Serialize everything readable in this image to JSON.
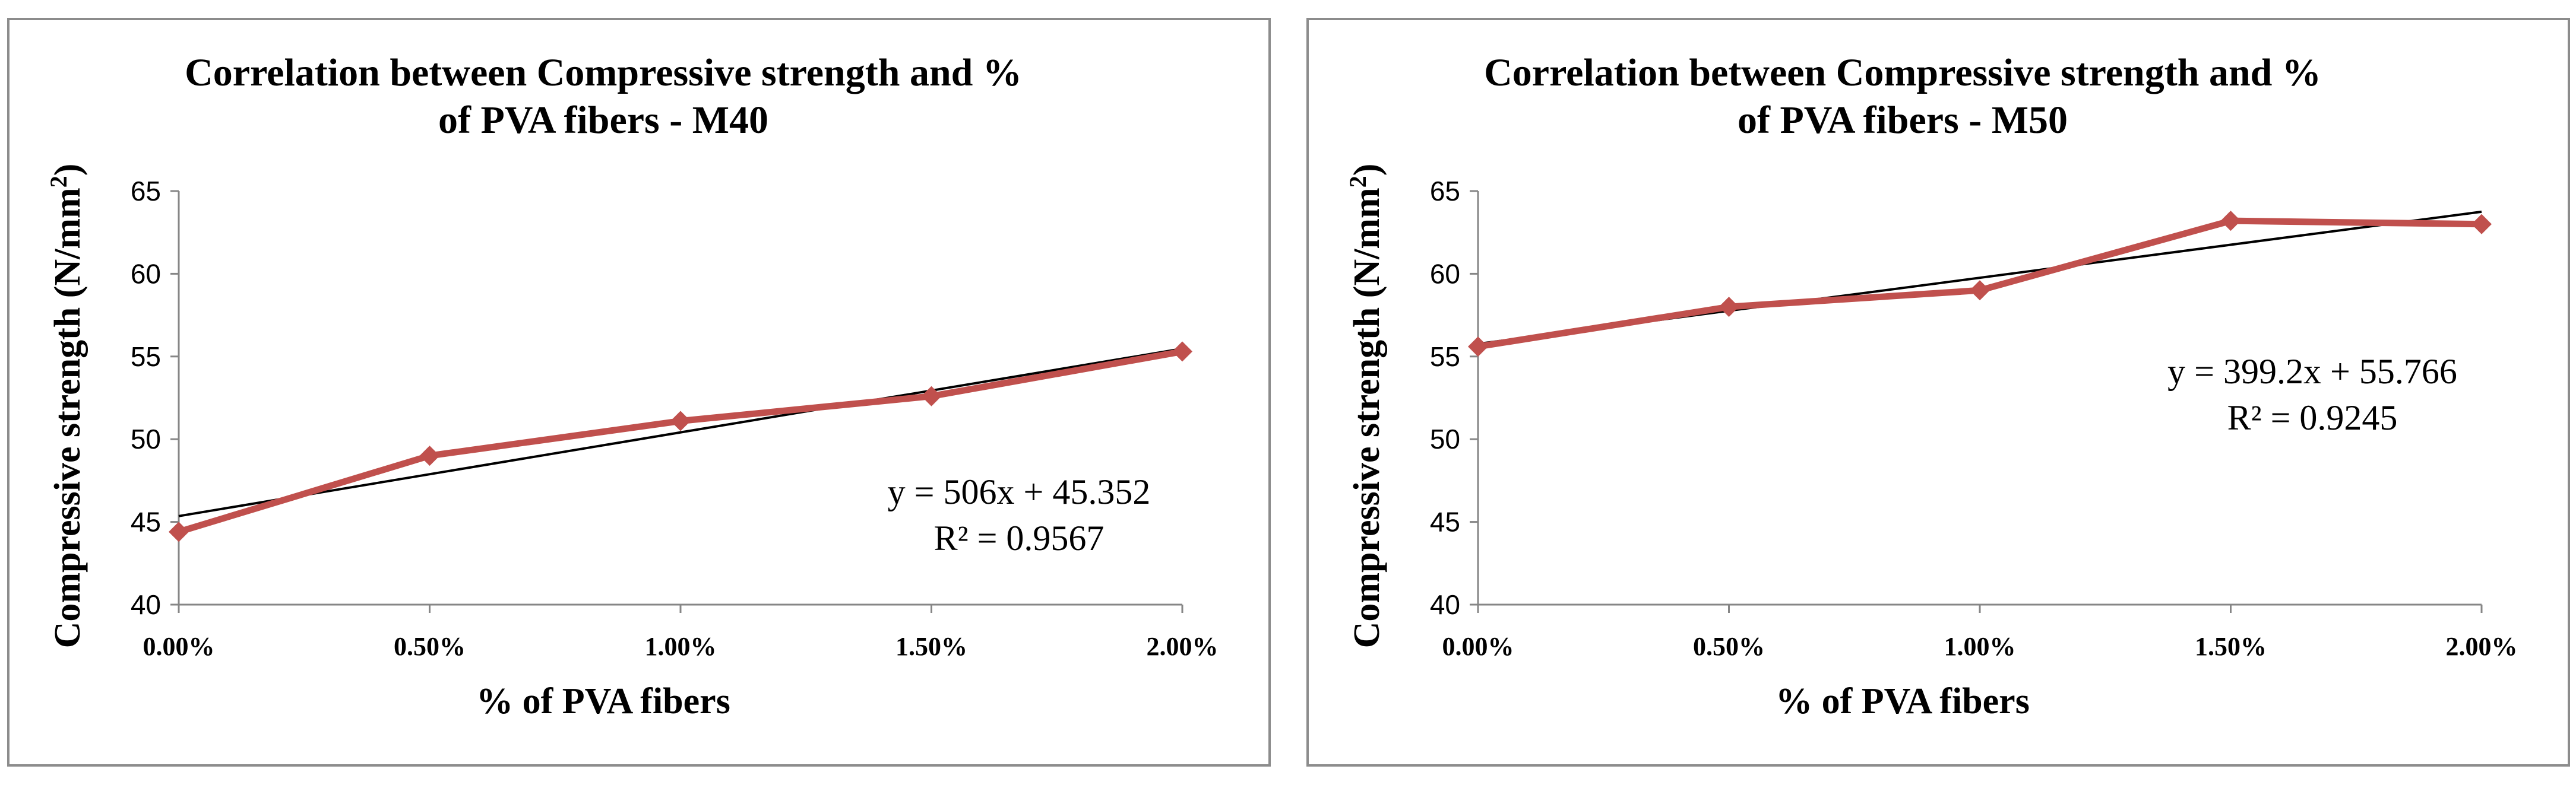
{
  "chart_data": [
    {
      "type": "line",
      "title_lines": [
        "Correlation between Compressive strength and %",
        "of PVA fibers - M40"
      ],
      "xlabel": "% of PVA fibers",
      "ylabel": "Compressive strength (N/mm",
      "ylabel_sup": "2",
      "ylabel_end": ")",
      "categories": [
        "0.00%",
        "0.50%",
        "1.00%",
        "1.50%",
        "2.00%"
      ],
      "x": [
        0,
        0.005,
        0.01,
        0.015,
        0.02
      ],
      "xlim": [
        0,
        0.02
      ],
      "ylim": [
        40,
        65
      ],
      "yticks": [
        "40",
        "45",
        "50",
        "55",
        "60",
        "65"
      ],
      "series": [
        {
          "name": "Compressive strength",
          "values": [
            44.4,
            49.0,
            51.1,
            52.6,
            55.3
          ],
          "color": "#c0504d"
        }
      ],
      "trendline": {
        "slope": 506,
        "intercept": 45.352,
        "color": "#000000",
        "equation": "y = 506x + 45.352",
        "r2": "R² = 0.9567"
      },
      "grid": false
    },
    {
      "type": "line",
      "title_lines": [
        "Correlation between Compressive strength and %",
        "of PVA fibers - M50"
      ],
      "xlabel": "% of PVA fibers",
      "ylabel": "Compressive strength (N/mm",
      "ylabel_sup": "2",
      "ylabel_end": ")",
      "categories": [
        "0.00%",
        "0.50%",
        "1.00%",
        "1.50%",
        "2.00%"
      ],
      "x": [
        0,
        0.005,
        0.01,
        0.015,
        0.02
      ],
      "xlim": [
        0,
        0.02
      ],
      "ylim": [
        40,
        65
      ],
      "yticks": [
        "40",
        "45",
        "50",
        "55",
        "60",
        "65"
      ],
      "series": [
        {
          "name": "Compressive strength",
          "values": [
            55.6,
            58.0,
            59.0,
            63.2,
            63.0
          ],
          "color": "#c0504d"
        }
      ],
      "trendline": {
        "slope": 399.2,
        "intercept": 55.766,
        "color": "#000000",
        "equation": "y = 399.2x + 55.766",
        "r2": "R² = 0.9245"
      },
      "grid": false
    }
  ]
}
